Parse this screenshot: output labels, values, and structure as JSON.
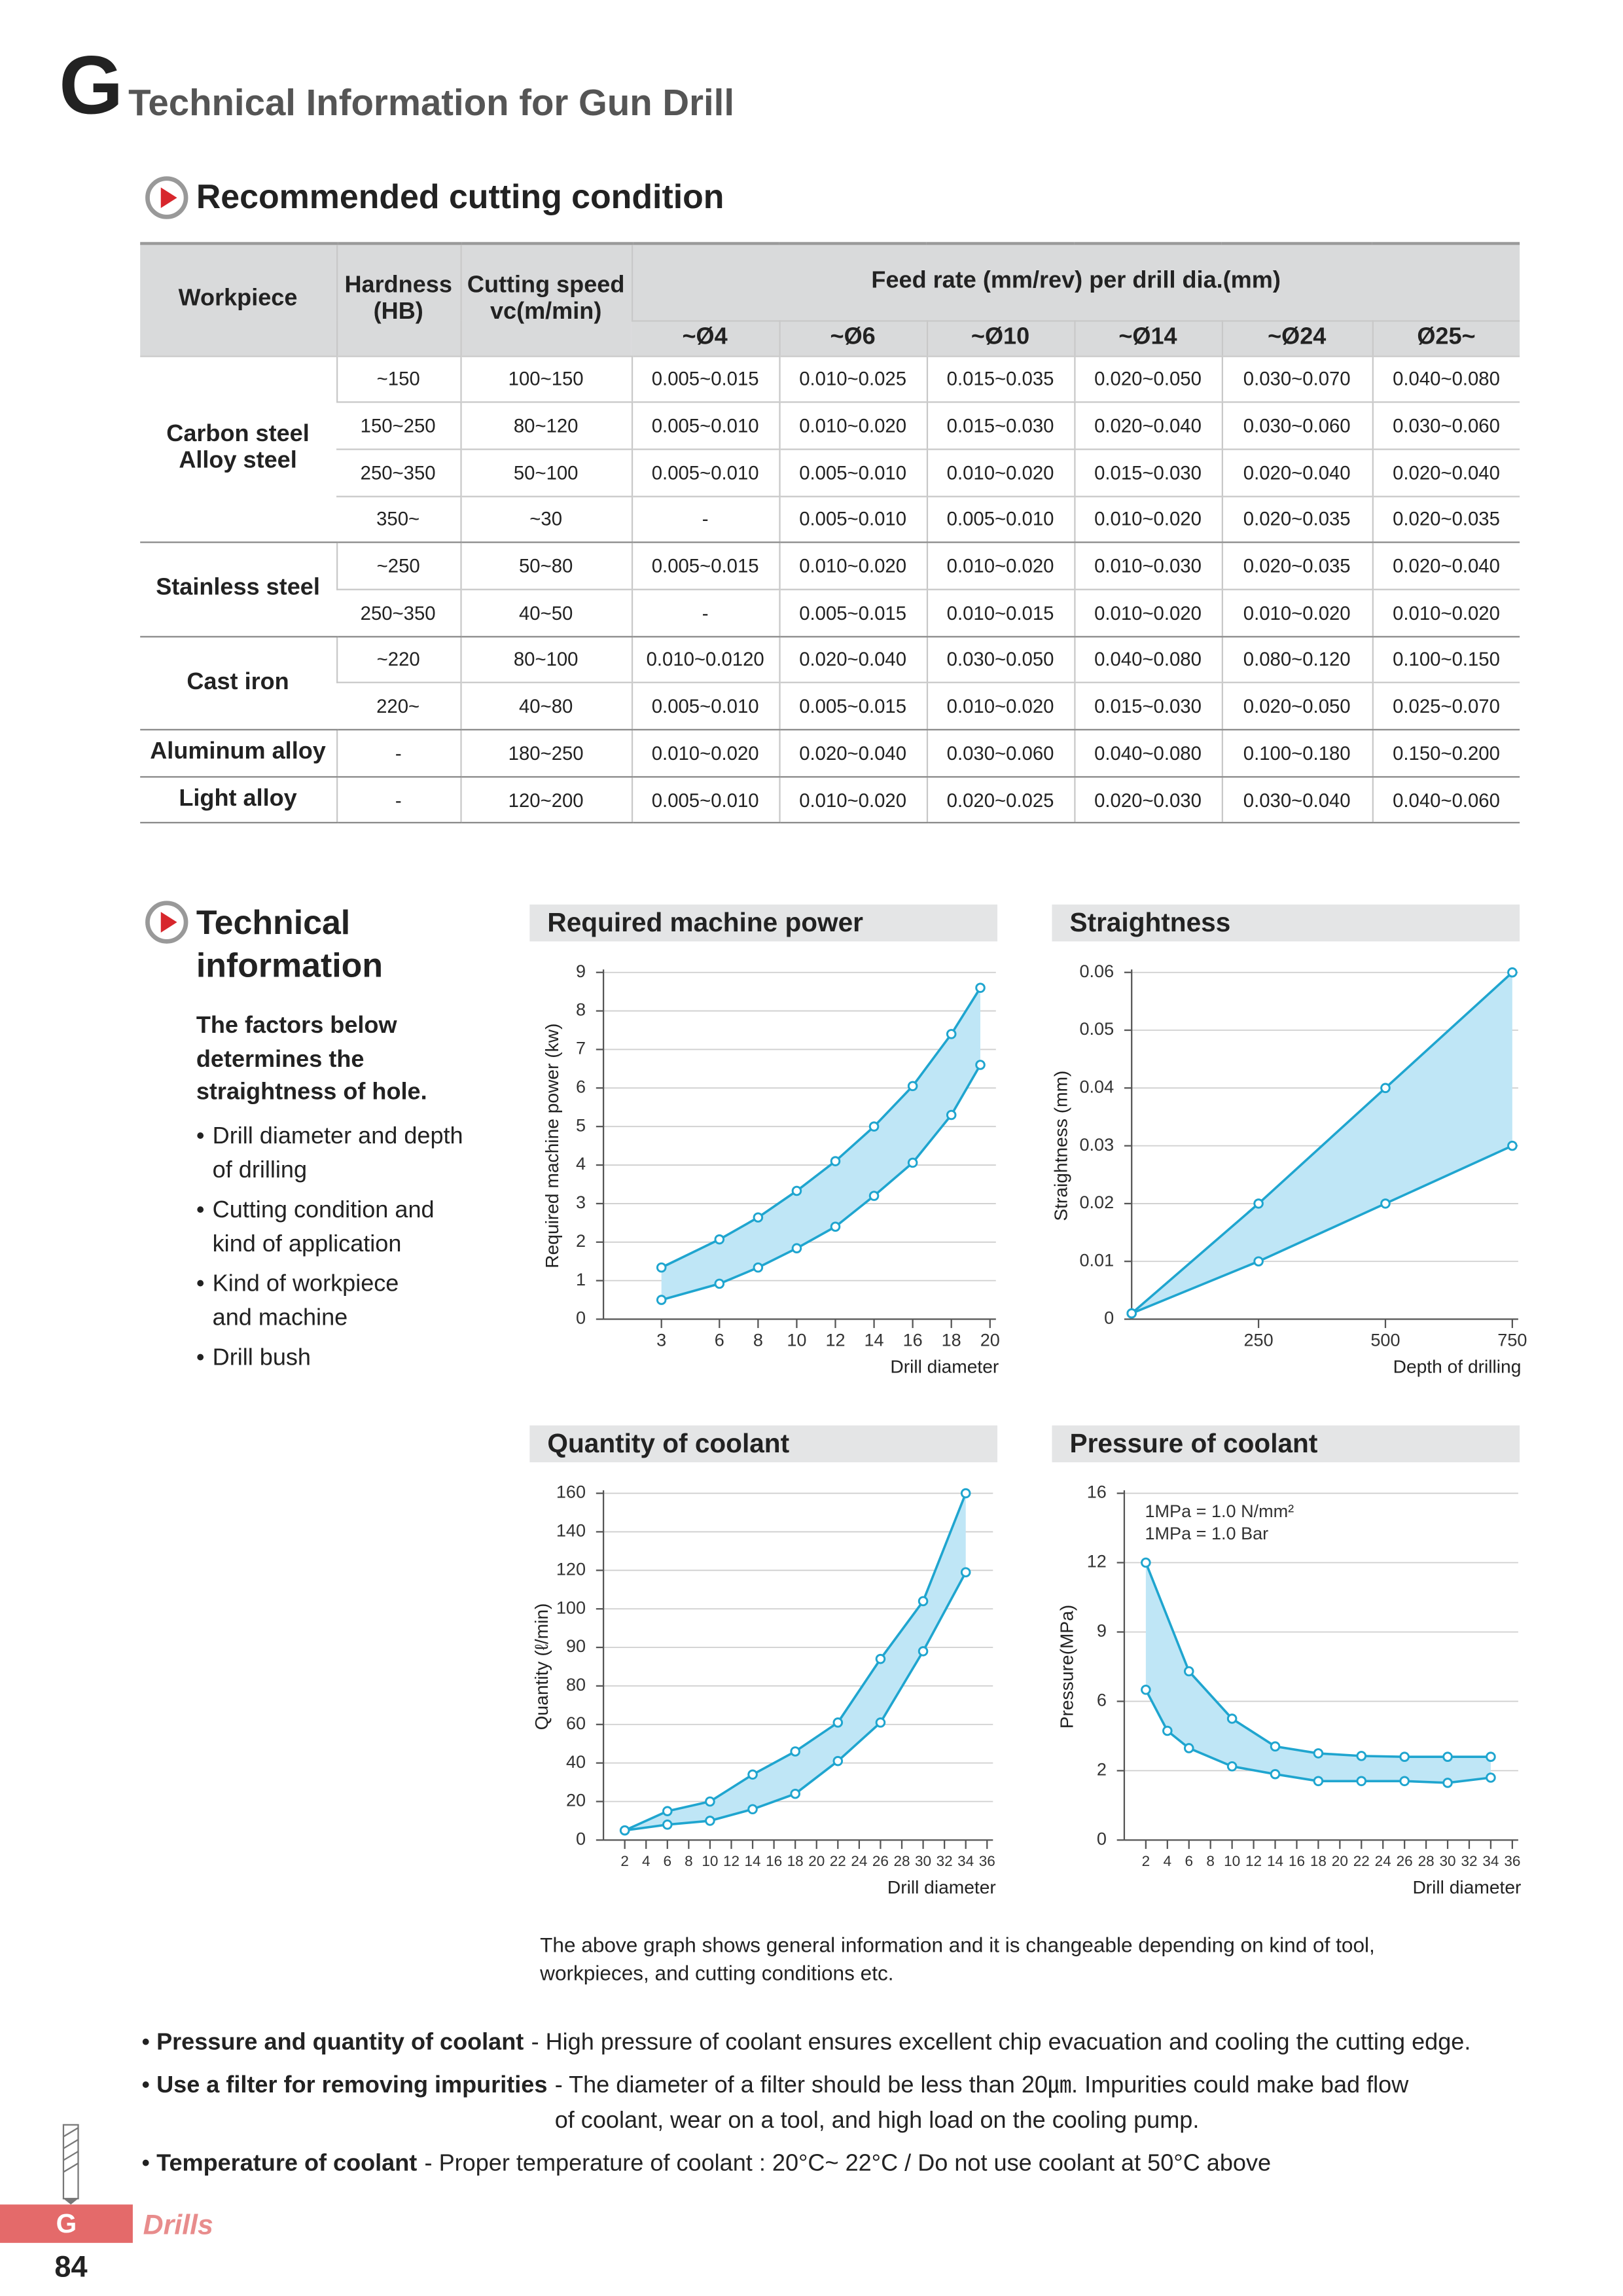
{
  "header": {
    "letter": "G",
    "title": "Technical Information for Gun Drill"
  },
  "cutting": {
    "title": "Recommended cutting condition"
  },
  "table": {
    "head": {
      "workpiece": "Workpiece",
      "hardness": [
        "Hardness",
        "(HB)"
      ],
      "speed": [
        "Cutting speed",
        "vc(m/min)"
      ],
      "feed": "Feed rate (mm/rev) per drill dia.(mm)",
      "diameters": [
        "~Ø4",
        "~Ø6",
        "~Ø10",
        "~Ø14",
        "~Ø24",
        "Ø25~"
      ]
    },
    "groups": [
      {
        "name": [
          "Carbon steel",
          "Alloy steel"
        ],
        "rows": [
          [
            "~150",
            "100~150",
            "0.005~0.015",
            "0.010~0.025",
            "0.015~0.035",
            "0.020~0.050",
            "0.030~0.070",
            "0.040~0.080"
          ],
          [
            "150~250",
            "80~120",
            "0.005~0.010",
            "0.010~0.020",
            "0.015~0.030",
            "0.020~0.040",
            "0.030~0.060",
            "0.030~0.060"
          ],
          [
            "250~350",
            "50~100",
            "0.005~0.010",
            "0.005~0.010",
            "0.010~0.020",
            "0.015~0.030",
            "0.020~0.040",
            "0.020~0.040"
          ],
          [
            "350~",
            "~30",
            "-",
            "0.005~0.010",
            "0.005~0.010",
            "0.010~0.020",
            "0.020~0.035",
            "0.020~0.035"
          ]
        ]
      },
      {
        "name": [
          "Stainless steel"
        ],
        "rows": [
          [
            "~250",
            "50~80",
            "0.005~0.015",
            "0.010~0.020",
            "0.010~0.020",
            "0.010~0.030",
            "0.020~0.035",
            "0.020~0.040"
          ],
          [
            "250~350",
            "40~50",
            "-",
            "0.005~0.015",
            "0.010~0.015",
            "0.010~0.020",
            "0.010~0.020",
            "0.010~0.020"
          ]
        ]
      },
      {
        "name": [
          "Cast iron"
        ],
        "rows": [
          [
            "~220",
            "80~100",
            "0.010~0.0120",
            "0.020~0.040",
            "0.030~0.050",
            "0.040~0.080",
            "0.080~0.120",
            "0.100~0.150"
          ],
          [
            "220~",
            "40~80",
            "0.005~0.010",
            "0.005~0.015",
            "0.010~0.020",
            "0.015~0.030",
            "0.020~0.050",
            "0.025~0.070"
          ]
        ]
      },
      {
        "name": [
          "Aluminum alloy"
        ],
        "rows": [
          [
            "-",
            "180~250",
            "0.010~0.020",
            "0.020~0.040",
            "0.030~0.060",
            "0.040~0.080",
            "0.100~0.180",
            "0.150~0.200"
          ]
        ]
      },
      {
        "name": [
          "Light alloy"
        ],
        "rows": [
          [
            "-",
            "120~200",
            "0.005~0.010",
            "0.010~0.020",
            "0.020~0.025",
            "0.020~0.030",
            "0.030~0.040",
            "0.040~0.060"
          ]
        ]
      }
    ]
  },
  "technical": {
    "title": [
      "Technical",
      "information"
    ],
    "intro": [
      "The factors below",
      "determines the",
      "straightness of hole."
    ],
    "bullets": [
      [
        "Drill diameter and depth",
        "of drilling"
      ],
      [
        "Cutting condition and",
        "kind of application"
      ],
      [
        "Kind of workpiece",
        "and machine"
      ],
      [
        "Drill bush"
      ]
    ]
  },
  "chart_data": [
    {
      "type": "line",
      "title": "Required machine power",
      "ylabel": "Required machine power (kw)",
      "xlabel": "Drill diameter",
      "xlim": [
        0,
        20
      ],
      "xticks": [
        3,
        6,
        8,
        10,
        12,
        14,
        16,
        18,
        20
      ],
      "ylim": [
        0,
        9
      ],
      "yticks": [
        0,
        1,
        2,
        3,
        4,
        5,
        6,
        7,
        8,
        9
      ],
      "grid": true,
      "fill_color": "#bfe6f6",
      "series": [
        {
          "color": "#1fa5cf",
          "x": [
            3,
            6,
            8,
            10,
            12,
            14,
            16,
            18,
            19.5
          ],
          "values": [
            1.34,
            2.07,
            2.64,
            3.33,
            4.1,
            5.0,
            6.05,
            7.4,
            8.6
          ]
        },
        {
          "color": "#1fa5cf",
          "x": [
            3,
            6,
            8,
            10,
            12,
            14,
            16,
            18,
            19.5
          ],
          "values": [
            0.5,
            0.92,
            1.34,
            1.84,
            2.4,
            3.2,
            4.06,
            5.3,
            6.6
          ]
        }
      ]
    },
    {
      "type": "line",
      "title": "Straightness",
      "ylabel": "Straightness (mm)",
      "xlabel": "Depth of drilling",
      "xlim": [
        0,
        750
      ],
      "xticks": [
        250,
        500,
        750
      ],
      "ylim": [
        0,
        0.06
      ],
      "yticks": [
        0,
        0.01,
        0.02,
        0.03,
        0.04,
        0.05,
        0.06
      ],
      "grid": true,
      "fill_color": "#bfe6f6",
      "series": [
        {
          "color": "#1fa5cf",
          "x": [
            0,
            250,
            500,
            750
          ],
          "values": [
            0.001,
            0.02,
            0.04,
            0.06
          ]
        },
        {
          "color": "#1fa5cf",
          "x": [
            0,
            250,
            500,
            750
          ],
          "values": [
            0.001,
            0.01,
            0.02,
            0.03
          ]
        }
      ]
    },
    {
      "type": "line",
      "title": "Quantity of coolant",
      "ylabel": "Quantity (ℓ/min)",
      "xlabel": "Drill diameter",
      "xlim": [
        0,
        36
      ],
      "xticks": [
        2,
        4,
        6,
        8,
        10,
        12,
        14,
        16,
        18,
        20,
        22,
        24,
        26,
        28,
        30,
        32,
        34,
        36
      ],
      "ylim": [
        0,
        160
      ],
      "yticks": [
        0,
        20,
        40,
        60,
        80,
        90,
        100,
        120,
        140,
        160
      ],
      "grid": true,
      "fill_color": "#bfe6f6",
      "series": [
        {
          "color": "#1fa5cf",
          "x": [
            2,
            6,
            10,
            14,
            18,
            22,
            26,
            30,
            34
          ],
          "values": [
            5,
            15,
            20,
            34,
            46,
            61,
            87,
            104,
            160
          ]
        },
        {
          "color": "#1fa5cf",
          "x": [
            2,
            6,
            10,
            14,
            18,
            22,
            26,
            30,
            34
          ],
          "values": [
            5,
            8,
            10,
            16,
            24,
            41,
            61,
            89,
            119
          ]
        }
      ]
    },
    {
      "type": "line",
      "title": "Pressure of coolant",
      "ylabel": "Pressure(MPa)",
      "xlabel": "Drill diameter",
      "xlim": [
        0,
        36
      ],
      "xticks": [
        2,
        4,
        6,
        8,
        10,
        12,
        14,
        16,
        18,
        20,
        22,
        24,
        26,
        28,
        30,
        32,
        34,
        36
      ],
      "ylim": [
        0,
        16
      ],
      "yticks": [
        0,
        2,
        6,
        9,
        12,
        16
      ],
      "grid": true,
      "fill_color": "#bfe6f6",
      "annotations": [
        "1MPa = 1.0 N/mm²",
        "1MPa = 1.0 Bar"
      ],
      "series": [
        {
          "color": "#1fa5cf",
          "x": [
            2,
            6,
            10,
            14,
            18,
            22,
            26,
            30,
            34
          ],
          "values": [
            12,
            7.3,
            5.0,
            3.4,
            3.0,
            2.85,
            2.8,
            2.8,
            2.8
          ]
        },
        {
          "color": "#1fa5cf",
          "x": [
            2,
            4,
            6,
            10,
            14,
            18,
            22,
            26,
            30,
            34
          ],
          "values": [
            6.5,
            4.3,
            3.3,
            2.25,
            1.9,
            1.7,
            1.7,
            1.7,
            1.65,
            1.8
          ]
        }
      ]
    }
  ],
  "chart_note": "The above graph shows general information and it is changeable depending on kind of tool, workpieces, and cutting conditions etc.",
  "notes": [
    {
      "term": "Pressure and quantity of coolant",
      "text": "- High pressure of coolant ensures excellent chip evacuation and cooling the cutting edge."
    },
    {
      "term": "Use a filter for removing impurities",
      "text": "- The diameter of a filter should be less than 20㎛. Impurities could make bad flow of coolant, wear on a tool, and high load on the cooling pump."
    },
    {
      "term": "Temperature of coolant",
      "text": "- Proper temperature of coolant : 20°C~ 22°C / Do not use coolant at 50°C above"
    }
  ],
  "footer": {
    "letter": "G",
    "section": "Drills",
    "page": "84"
  }
}
